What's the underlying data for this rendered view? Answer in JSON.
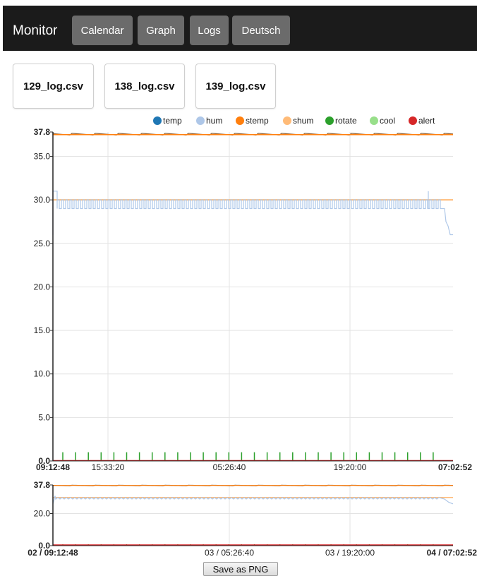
{
  "nav": {
    "brand": "Monitor",
    "buttons": [
      "Calendar",
      "Graph",
      "Logs",
      "Deutsch"
    ]
  },
  "files": [
    "129_log.csv",
    "138_log.csv",
    "139_log.csv"
  ],
  "save_label": "Save as PNG",
  "chart_data": [
    {
      "type": "line",
      "legend": [
        {
          "name": "temp",
          "color": "#1f77b4"
        },
        {
          "name": "hum",
          "color": "#aec7e8"
        },
        {
          "name": "stemp",
          "color": "#ff7f0e"
        },
        {
          "name": "shum",
          "color": "#ffbb78"
        },
        {
          "name": "rotate",
          "color": "#2ca02c"
        },
        {
          "name": "cool",
          "color": "#98df8a"
        },
        {
          "name": "alert",
          "color": "#d62728"
        }
      ],
      "legend_position": "top-right",
      "ylim": [
        0,
        37.8
      ],
      "y_ticks": [
        "0.0",
        "5.0",
        "10.0",
        "15.0",
        "20.0",
        "25.0",
        "30.0",
        "35.0",
        "37.8"
      ],
      "x_ticks": [
        "09:12:48",
        "15:33:20",
        "05:26:40",
        "19:20:00",
        "07:02:52"
      ],
      "grid": true,
      "series": [
        {
          "name": "temp",
          "color": "#1f77b4",
          "values": [
            37.5,
            37.6,
            37.5,
            37.7,
            37.6,
            37.5,
            37.6,
            37.7,
            37.6,
            37.5,
            37.6,
            37.6
          ]
        },
        {
          "name": "hum",
          "color": "#aec7e8",
          "values": [
            26,
            31,
            30,
            29,
            30,
            29,
            30,
            29,
            30,
            31,
            29,
            26
          ]
        },
        {
          "name": "stemp",
          "color": "#ff7f0e",
          "values": [
            37.5,
            37.5
          ]
        },
        {
          "name": "shum",
          "color": "#ffbb78",
          "values": [
            30,
            30
          ]
        },
        {
          "name": "rotate",
          "color": "#2ca02c",
          "values": [
            1,
            0,
            1,
            0,
            1
          ]
        },
        {
          "name": "cool",
          "color": "#98df8a",
          "values": [
            0,
            0
          ]
        },
        {
          "name": "alert",
          "color": "#d62728",
          "values": [
            0,
            0
          ]
        }
      ]
    },
    {
      "type": "line",
      "ylim": [
        0,
        37.8
      ],
      "y_ticks": [
        "0.0",
        "20.0",
        "37.8"
      ],
      "x_ticks": [
        "02 / 09:12:48",
        "03 / 05:26:40",
        "03 / 19:20:00",
        "04 / 07:02:52"
      ],
      "grid": true
    }
  ]
}
